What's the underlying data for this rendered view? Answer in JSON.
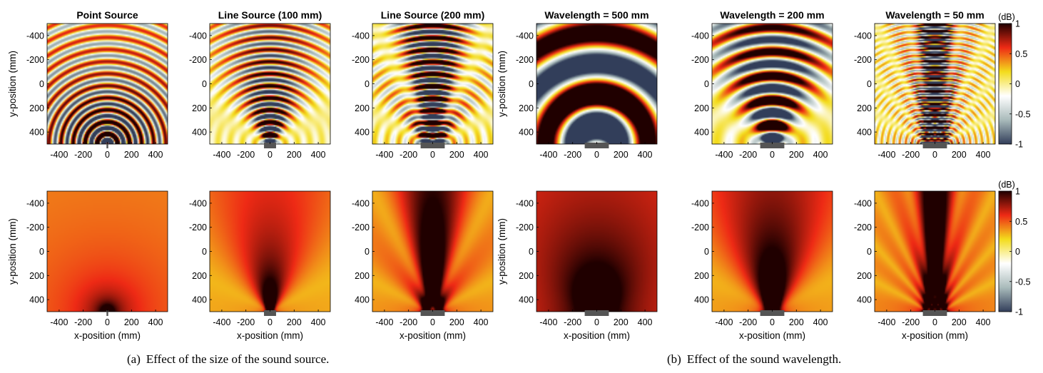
{
  "colorbar": {
    "unit": "(dB)",
    "ticks": [
      1,
      0.5,
      0,
      -0.5,
      -1
    ],
    "colors": [
      "#323e5a",
      "#a9bbbb",
      "#ffffff",
      "#f3dc1c",
      "#ee2a15",
      "#200000"
    ]
  },
  "captions": {
    "a_label": "(a)",
    "a_text": "Effect of the size of the sound source.",
    "b_label": "(b)",
    "b_text": "Effect of the sound wavelength."
  },
  "chart_data": [
    {
      "type": "heatmap",
      "title": "Point Source",
      "row": "wave",
      "ylabel": "y-position (mm)",
      "xlabel": "",
      "xlim": [
        -500,
        500
      ],
      "ylim": [
        -500,
        500
      ],
      "xticks": [
        -400,
        -200,
        0,
        200,
        400
      ],
      "yticks": [
        -400,
        -200,
        0,
        200,
        400
      ],
      "source_width_mm": 0,
      "wavelength_mm": 100,
      "value_range": [
        -1,
        1
      ]
    },
    {
      "type": "heatmap",
      "title": "Line Source (100 mm)",
      "row": "wave",
      "ylabel": "",
      "xlabel": "",
      "xlim": [
        -500,
        500
      ],
      "ylim": [
        -500,
        500
      ],
      "xticks": [
        -400,
        -200,
        0,
        200,
        400
      ],
      "yticks": [
        -400,
        -200,
        0,
        200,
        400
      ],
      "source_width_mm": 100,
      "wavelength_mm": 100,
      "value_range": [
        -1,
        1
      ]
    },
    {
      "type": "heatmap",
      "title": "Line Source (200 mm)",
      "row": "wave",
      "ylabel": "",
      "xlabel": "",
      "xlim": [
        -500,
        500
      ],
      "ylim": [
        -500,
        500
      ],
      "xticks": [
        -400,
        -200,
        0,
        200,
        400
      ],
      "yticks": [
        -400,
        -200,
        0,
        200,
        400
      ],
      "source_width_mm": 200,
      "wavelength_mm": 100,
      "value_range": [
        -1,
        1
      ]
    },
    {
      "type": "heatmap",
      "title": "Wavelength = 500 mm",
      "row": "wave",
      "ylabel": "y-position (mm)",
      "xlabel": "",
      "xlim": [
        -500,
        500
      ],
      "ylim": [
        -500,
        500
      ],
      "xticks": [
        -400,
        -200,
        0,
        200,
        400
      ],
      "yticks": [
        -400,
        -200,
        0,
        200,
        400
      ],
      "source_width_mm": 200,
      "wavelength_mm": 500,
      "value_range": [
        -1,
        1
      ]
    },
    {
      "type": "heatmap",
      "title": "Wavelength = 200 mm",
      "row": "wave",
      "ylabel": "",
      "xlabel": "",
      "xlim": [
        -500,
        500
      ],
      "ylim": [
        -500,
        500
      ],
      "xticks": [
        -400,
        -200,
        0,
        200,
        400
      ],
      "yticks": [
        -400,
        -200,
        0,
        200,
        400
      ],
      "source_width_mm": 200,
      "wavelength_mm": 200,
      "value_range": [
        -1,
        1
      ]
    },
    {
      "type": "heatmap",
      "title": "Wavelength = 50 mm",
      "row": "wave",
      "ylabel": "",
      "xlabel": "",
      "xlim": [
        -500,
        500
      ],
      "ylim": [
        -500,
        500
      ],
      "xticks": [
        -400,
        -200,
        0,
        200,
        400
      ],
      "yticks": [
        -400,
        -200,
        0,
        200,
        400
      ],
      "source_width_mm": 200,
      "wavelength_mm": 50,
      "value_range": [
        -1,
        1
      ]
    },
    {
      "type": "heatmap",
      "title": "",
      "row": "intensity",
      "ylabel": "y-position (mm)",
      "xlabel": "x-position (mm)",
      "xlim": [
        -500,
        500
      ],
      "ylim": [
        -500,
        500
      ],
      "xticks": [
        -400,
        -200,
        0,
        200,
        400
      ],
      "yticks": [
        -400,
        -200,
        0,
        200,
        400
      ],
      "source_width_mm": 0,
      "wavelength_mm": 100,
      "value_range": [
        -1,
        1
      ]
    },
    {
      "type": "heatmap",
      "title": "",
      "row": "intensity",
      "ylabel": "",
      "xlabel": "x-position (mm)",
      "xlim": [
        -500,
        500
      ],
      "ylim": [
        -500,
        500
      ],
      "xticks": [
        -400,
        -200,
        0,
        200,
        400
      ],
      "yticks": [
        -400,
        -200,
        0,
        200,
        400
      ],
      "source_width_mm": 100,
      "wavelength_mm": 100,
      "value_range": [
        -1,
        1
      ]
    },
    {
      "type": "heatmap",
      "title": "",
      "row": "intensity",
      "ylabel": "",
      "xlabel": "x-position (mm)",
      "xlim": [
        -500,
        500
      ],
      "ylim": [
        -500,
        500
      ],
      "xticks": [
        -400,
        -200,
        0,
        200,
        400
      ],
      "yticks": [
        -400,
        -200,
        0,
        200,
        400
      ],
      "source_width_mm": 200,
      "wavelength_mm": 100,
      "value_range": [
        -1,
        1
      ]
    },
    {
      "type": "heatmap",
      "title": "",
      "row": "intensity",
      "ylabel": "y-position (mm)",
      "xlabel": "x-position (mm)",
      "xlim": [
        -500,
        500
      ],
      "ylim": [
        -500,
        500
      ],
      "xticks": [
        -400,
        -200,
        0,
        200,
        400
      ],
      "yticks": [
        -400,
        -200,
        0,
        200,
        400
      ],
      "source_width_mm": 200,
      "wavelength_mm": 500,
      "value_range": [
        -1,
        1
      ]
    },
    {
      "type": "heatmap",
      "title": "",
      "row": "intensity",
      "ylabel": "",
      "xlabel": "x-position (mm)",
      "xlim": [
        -500,
        500
      ],
      "ylim": [
        -500,
        500
      ],
      "xticks": [
        -400,
        -200,
        0,
        200,
        400
      ],
      "yticks": [
        -400,
        -200,
        0,
        200,
        400
      ],
      "source_width_mm": 200,
      "wavelength_mm": 200,
      "value_range": [
        -1,
        1
      ]
    },
    {
      "type": "heatmap",
      "title": "",
      "row": "intensity",
      "ylabel": "",
      "xlabel": "x-position (mm)",
      "xlim": [
        -500,
        500
      ],
      "ylim": [
        -500,
        500
      ],
      "xticks": [
        -400,
        -200,
        0,
        200,
        400
      ],
      "yticks": [
        -400,
        -200,
        0,
        200,
        400
      ],
      "source_width_mm": 200,
      "wavelength_mm": 50,
      "value_range": [
        -1,
        1
      ]
    }
  ]
}
